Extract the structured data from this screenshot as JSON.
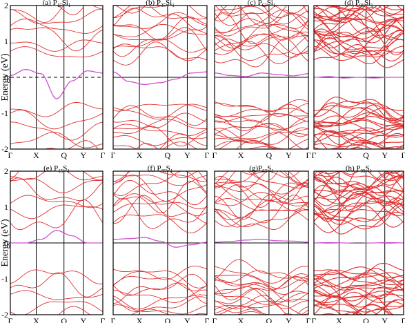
{
  "chart_data": {
    "type": "line",
    "ylabel": "Energy (eV)",
    "ylim": [
      -2,
      2
    ],
    "yticks": [
      "2",
      "1",
      "0",
      "-1",
      "-2"
    ],
    "kpath": [
      "Γ",
      "X",
      "Q",
      "Y",
      "Γ"
    ],
    "colors": {
      "bands": "#e03030",
      "gap_state": "#d050d0",
      "fermi_solid": "#000000"
    },
    "panels": [
      {
        "label": "(a) P",
        "n": "15",
        "mid": "Si",
        "m": "1",
        "fermi_style": "dashed",
        "n_valence": 5,
        "n_conduction": 7,
        "gap_band": [
          0.05,
          0.22,
          0.1,
          -0.6,
          -0.1,
          0.18,
          0.12
        ]
      },
      {
        "label": "(b) P",
        "n": "35",
        "mid": "Si",
        "m": "1",
        "fermi_style": "solid",
        "n_valence": 11,
        "n_conduction": 13,
        "gap_band": [
          0.15,
          -0.12,
          -0.2,
          -0.15,
          -0.05,
          0.12,
          0.15
        ]
      },
      {
        "label": "(c) P",
        "n": "63",
        "mid": "Si",
        "m": "1",
        "fermi_style": "solid",
        "n_valence": 18,
        "n_conduction": 20,
        "gap_band": [
          0.12,
          0.05,
          0.02,
          0.12,
          0.08,
          0.04,
          0.1
        ]
      },
      {
        "label": "(d) P",
        "n": "99",
        "mid": "Si",
        "m": "1",
        "fermi_style": "solid",
        "n_valence": 26,
        "n_conduction": 30,
        "gap_band": [
          0.0,
          0.02,
          -0.02,
          0.0,
          -0.02,
          0.0,
          0.0
        ]
      },
      {
        "label": "(e) P",
        "n": "15",
        "mid": "S",
        "m": "1",
        "fermi_style": "solid",
        "n_valence": 5,
        "n_conduction": 7,
        "gap_band": [
          0.0,
          0.0,
          0.1,
          0.35,
          0.2,
          0.0,
          0.0
        ]
      },
      {
        "label": "(f) P",
        "n": "35",
        "mid": "S",
        "m": "1",
        "fermi_style": "solid",
        "n_valence": 11,
        "n_conduction": 13,
        "gap_band": [
          0.1,
          0.12,
          0.15,
          0.05,
          -0.12,
          -0.05,
          0.02
        ]
      },
      {
        "label": "(g)P",
        "n": "63",
        "mid": "S",
        "m": "1",
        "fermi_style": "solid",
        "n_valence": 18,
        "n_conduction": 20,
        "gap_band": [
          0.02,
          0.04,
          0.08,
          0.1,
          0.06,
          0.05,
          0.02
        ]
      },
      {
        "label": "(h) P",
        "n": "99",
        "mid": "S",
        "m": "1",
        "fermi_style": "solid",
        "n_valence": 26,
        "n_conduction": 30,
        "gap_band": [
          0.0,
          0.01,
          0.0,
          -0.01,
          0.0,
          0.01,
          0.0
        ]
      }
    ]
  }
}
